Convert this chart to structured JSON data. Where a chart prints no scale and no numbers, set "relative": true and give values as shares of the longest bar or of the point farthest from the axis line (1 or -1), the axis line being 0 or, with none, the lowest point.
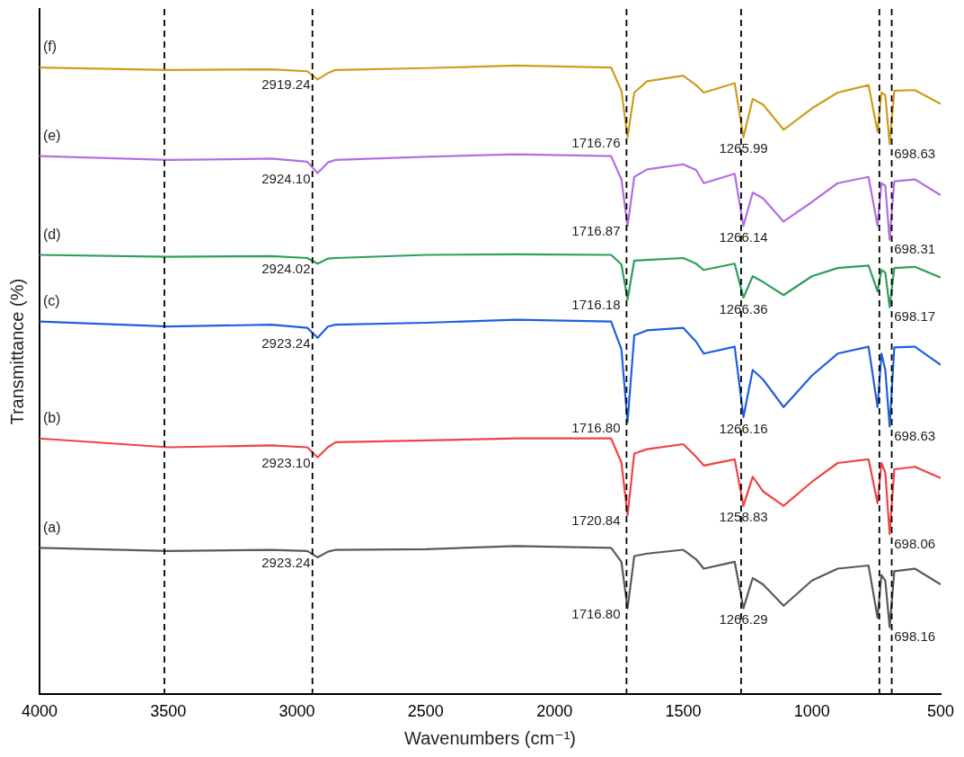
{
  "chart_data": {
    "type": "line",
    "xlabel": "Wavenumbers (cm⁻¹)",
    "ylabel": "Transmittance (%)",
    "relative": true,
    "xlim": [
      4000,
      500
    ],
    "xticks": [
      4000,
      3500,
      3000,
      2500,
      2000,
      1500,
      1000,
      500
    ],
    "x": [
      4000,
      3500,
      3100,
      2960,
      2920,
      2880,
      2850,
      2500,
      2150,
      1780,
      1740,
      1716,
      1690,
      1640,
      1500,
      1450,
      1420,
      1300,
      1266,
      1230,
      1190,
      1110,
      1000,
      900,
      780,
      745,
      730,
      715,
      698,
      680,
      600,
      500
    ],
    "series": [
      {
        "name": "(a)",
        "color": "#595959",
        "values": [
          0.233,
          0.228,
          0.23,
          0.228,
          0.218,
          0.227,
          0.23,
          0.231,
          0.236,
          0.233,
          0.211,
          0.137,
          0.22,
          0.224,
          0.23,
          0.215,
          0.2,
          0.211,
          0.137,
          0.185,
          0.175,
          0.141,
          0.181,
          0.2,
          0.205,
          0.122,
          0.19,
          0.181,
          0.107,
          0.196,
          0.2,
          0.175
        ]
      },
      {
        "name": "(b)",
        "color": "#ee4444",
        "values": [
          0.407,
          0.393,
          0.396,
          0.393,
          0.377,
          0.393,
          0.401,
          0.404,
          0.407,
          0.407,
          0.369,
          0.285,
          0.383,
          0.39,
          0.398,
          0.378,
          0.364,
          0.374,
          0.3,
          0.346,
          0.323,
          0.3,
          0.338,
          0.368,
          0.374,
          0.304,
          0.368,
          0.353,
          0.255,
          0.358,
          0.362,
          0.344
        ]
      },
      {
        "name": "(c)",
        "color": "#1f5fdc",
        "values": [
          0.593,
          0.585,
          0.588,
          0.583,
          0.567,
          0.585,
          0.588,
          0.591,
          0.596,
          0.593,
          0.549,
          0.433,
          0.571,
          0.579,
          0.583,
          0.561,
          0.542,
          0.553,
          0.441,
          0.516,
          0.501,
          0.457,
          0.507,
          0.542,
          0.553,
          0.457,
          0.542,
          0.516,
          0.426,
          0.552,
          0.553,
          0.524
        ]
      },
      {
        "name": "(d)",
        "color": "#2e9e5b",
        "values": [
          0.699,
          0.696,
          0.697,
          0.694,
          0.685,
          0.693,
          0.694,
          0.699,
          0.7,
          0.699,
          0.684,
          0.628,
          0.69,
          0.691,
          0.694,
          0.685,
          0.675,
          0.685,
          0.631,
          0.665,
          0.656,
          0.635,
          0.665,
          0.678,
          0.682,
          0.641,
          0.675,
          0.671,
          0.616,
          0.678,
          0.68,
          0.663
        ]
      },
      {
        "name": "(e)",
        "color": "#b36fe0",
        "values": [
          0.856,
          0.85,
          0.852,
          0.847,
          0.829,
          0.846,
          0.85,
          0.855,
          0.859,
          0.856,
          0.819,
          0.745,
          0.823,
          0.835,
          0.843,
          0.834,
          0.813,
          0.828,
          0.745,
          0.798,
          0.789,
          0.752,
          0.783,
          0.813,
          0.823,
          0.745,
          0.813,
          0.809,
          0.723,
          0.816,
          0.819,
          0.794
        ]
      },
      {
        "name": "(f)",
        "color": "#cc9e1e",
        "values": [
          0.997,
          0.993,
          0.994,
          0.991,
          0.978,
          0.988,
          0.993,
          0.996,
          1.0,
          0.997,
          0.96,
          0.886,
          0.957,
          0.975,
          0.984,
          0.969,
          0.957,
          0.972,
          0.886,
          0.947,
          0.938,
          0.898,
          0.932,
          0.957,
          0.969,
          0.895,
          0.957,
          0.953,
          0.875,
          0.96,
          0.961,
          0.939
        ]
      }
    ],
    "ref_lines": [
      {
        "axis": "x",
        "value": 3515,
        "color": "#000000",
        "line_style": "dashed"
      },
      {
        "axis": "x",
        "value": 2940,
        "color": "#000000",
        "line_style": "dashed"
      },
      {
        "axis": "x",
        "value": 1720,
        "color": "#000000",
        "line_style": "dashed"
      },
      {
        "axis": "x",
        "value": 1275,
        "color": "#000000",
        "line_style": "dashed"
      },
      {
        "axis": "x",
        "value": 738,
        "color": "#000000",
        "line_style": "dashed"
      },
      {
        "axis": "x",
        "value": 690,
        "color": "#000000",
        "line_style": "dashed"
      }
    ],
    "annotations": [
      {
        "text": "2919.24",
        "x": 2920,
        "y": 0.978
      },
      {
        "text": "2924.10",
        "x": 2920,
        "y": 0.829
      },
      {
        "text": "2924.02",
        "x": 2920,
        "y": 0.685
      },
      {
        "text": "2923.24",
        "x": 2920,
        "y": 0.567
      },
      {
        "text": "2923.10",
        "x": 2920,
        "y": 0.377
      },
      {
        "text": "2923.24",
        "x": 2920,
        "y": 0.218
      },
      {
        "text": "1716.76",
        "x": 1716,
        "y": 0.886
      },
      {
        "text": "1716.87",
        "x": 1716,
        "y": 0.745
      },
      {
        "text": "1716.18",
        "x": 1716,
        "y": 0.628
      },
      {
        "text": "1716.80",
        "x": 1716,
        "y": 0.433
      },
      {
        "text": "1720.84",
        "x": 1716,
        "y": 0.285
      },
      {
        "text": "1716.80",
        "x": 1716,
        "y": 0.137
      },
      {
        "text": "1265.99",
        "x": 1266,
        "y": 0.886
      },
      {
        "text": "1266.14",
        "x": 1266,
        "y": 0.745
      },
      {
        "text": "1266.36",
        "x": 1266,
        "y": 0.631
      },
      {
        "text": "1266.16",
        "x": 1266,
        "y": 0.441
      },
      {
        "text": "1258.83",
        "x": 1266,
        "y": 0.3
      },
      {
        "text": "1266.29",
        "x": 1266,
        "y": 0.137
      },
      {
        "text": "698.63",
        "x": 698,
        "y": 0.875
      },
      {
        "text": "698.31",
        "x": 698,
        "y": 0.723
      },
      {
        "text": "698.17",
        "x": 698,
        "y": 0.616
      },
      {
        "text": "698.63",
        "x": 698,
        "y": 0.426
      },
      {
        "text": "698.06",
        "x": 698,
        "y": 0.255
      },
      {
        "text": "698.16",
        "x": 698,
        "y": 0.107
      }
    ]
  }
}
